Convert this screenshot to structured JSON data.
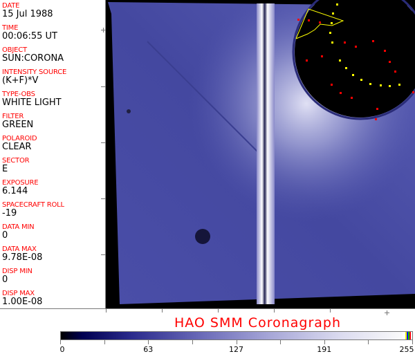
{
  "header_fields": [
    {
      "label": "DATE",
      "value": "15 Jul 1988"
    },
    {
      "label": "TIME",
      "value": "00:06:55 UT"
    },
    {
      "label": "OBJECT",
      "value": "SUN:CORONA"
    },
    {
      "label": "INTENSITY SOURCE",
      "value": "(K+F)*V"
    },
    {
      "label": "TYPE-OBS",
      "value": "WHITE LIGHT"
    },
    {
      "label": "FILTER",
      "value": "GREEN"
    },
    {
      "label": "POLAROID",
      "value": "CLEAR"
    },
    {
      "label": "SECTOR",
      "value": "E"
    },
    {
      "label": "EXPOSURE",
      "value": "6.144"
    },
    {
      "label": "SPACECRAFT ROLL",
      "value": "-19"
    },
    {
      "label": "DATA MIN",
      "value": "0"
    },
    {
      "label": "DATA MAX",
      "value": "9.78E-08"
    },
    {
      "label": "DISP MIN",
      "value": "0"
    },
    {
      "label": "DISP MAX",
      "value": "1.00E-08"
    }
  ],
  "title": "HAO  SMM Coronagraph",
  "colorbar": {
    "labels": [
      "0",
      "63",
      "127",
      "191",
      "255"
    ],
    "colormap": "black-blue-white",
    "colors": {
      "dark": "#000000",
      "mid": "#6a6ab8",
      "light": "#ffffff"
    }
  },
  "colors": {
    "label": "#ff0000",
    "value": "#000000",
    "overlay_red": "#ff0000",
    "overlay_yellow": "#ffff00"
  }
}
